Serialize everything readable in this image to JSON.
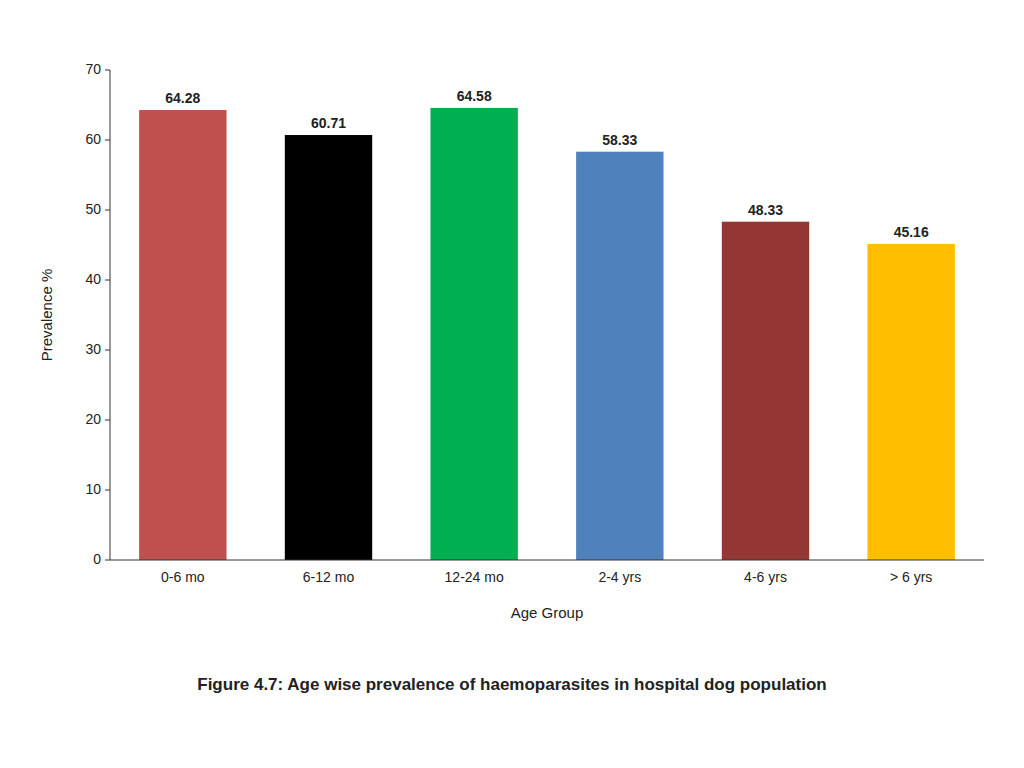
{
  "chart_data": {
    "type": "bar",
    "title": "Figure 4.7:   Age wise prevalence of haemoparasites in hospital dog population",
    "xlabel": "Age Group",
    "ylabel": "Prevalence %",
    "categories": [
      "0-6 mo",
      "6-12 mo",
      "12-24 mo",
      "2-4 yrs",
      "4-6 yrs",
      "> 6 yrs"
    ],
    "values": [
      64.28,
      60.71,
      64.58,
      58.33,
      48.33,
      45.16
    ],
    "colors": [
      "#C0504D",
      "#000000",
      "#00B050",
      "#4F81BD",
      "#943634",
      "#FFBF00"
    ],
    "ylim": [
      0,
      70
    ],
    "yticks": [
      0,
      10,
      20,
      30,
      40,
      50,
      60,
      70
    ],
    "grid": false,
    "data_labels": true
  }
}
